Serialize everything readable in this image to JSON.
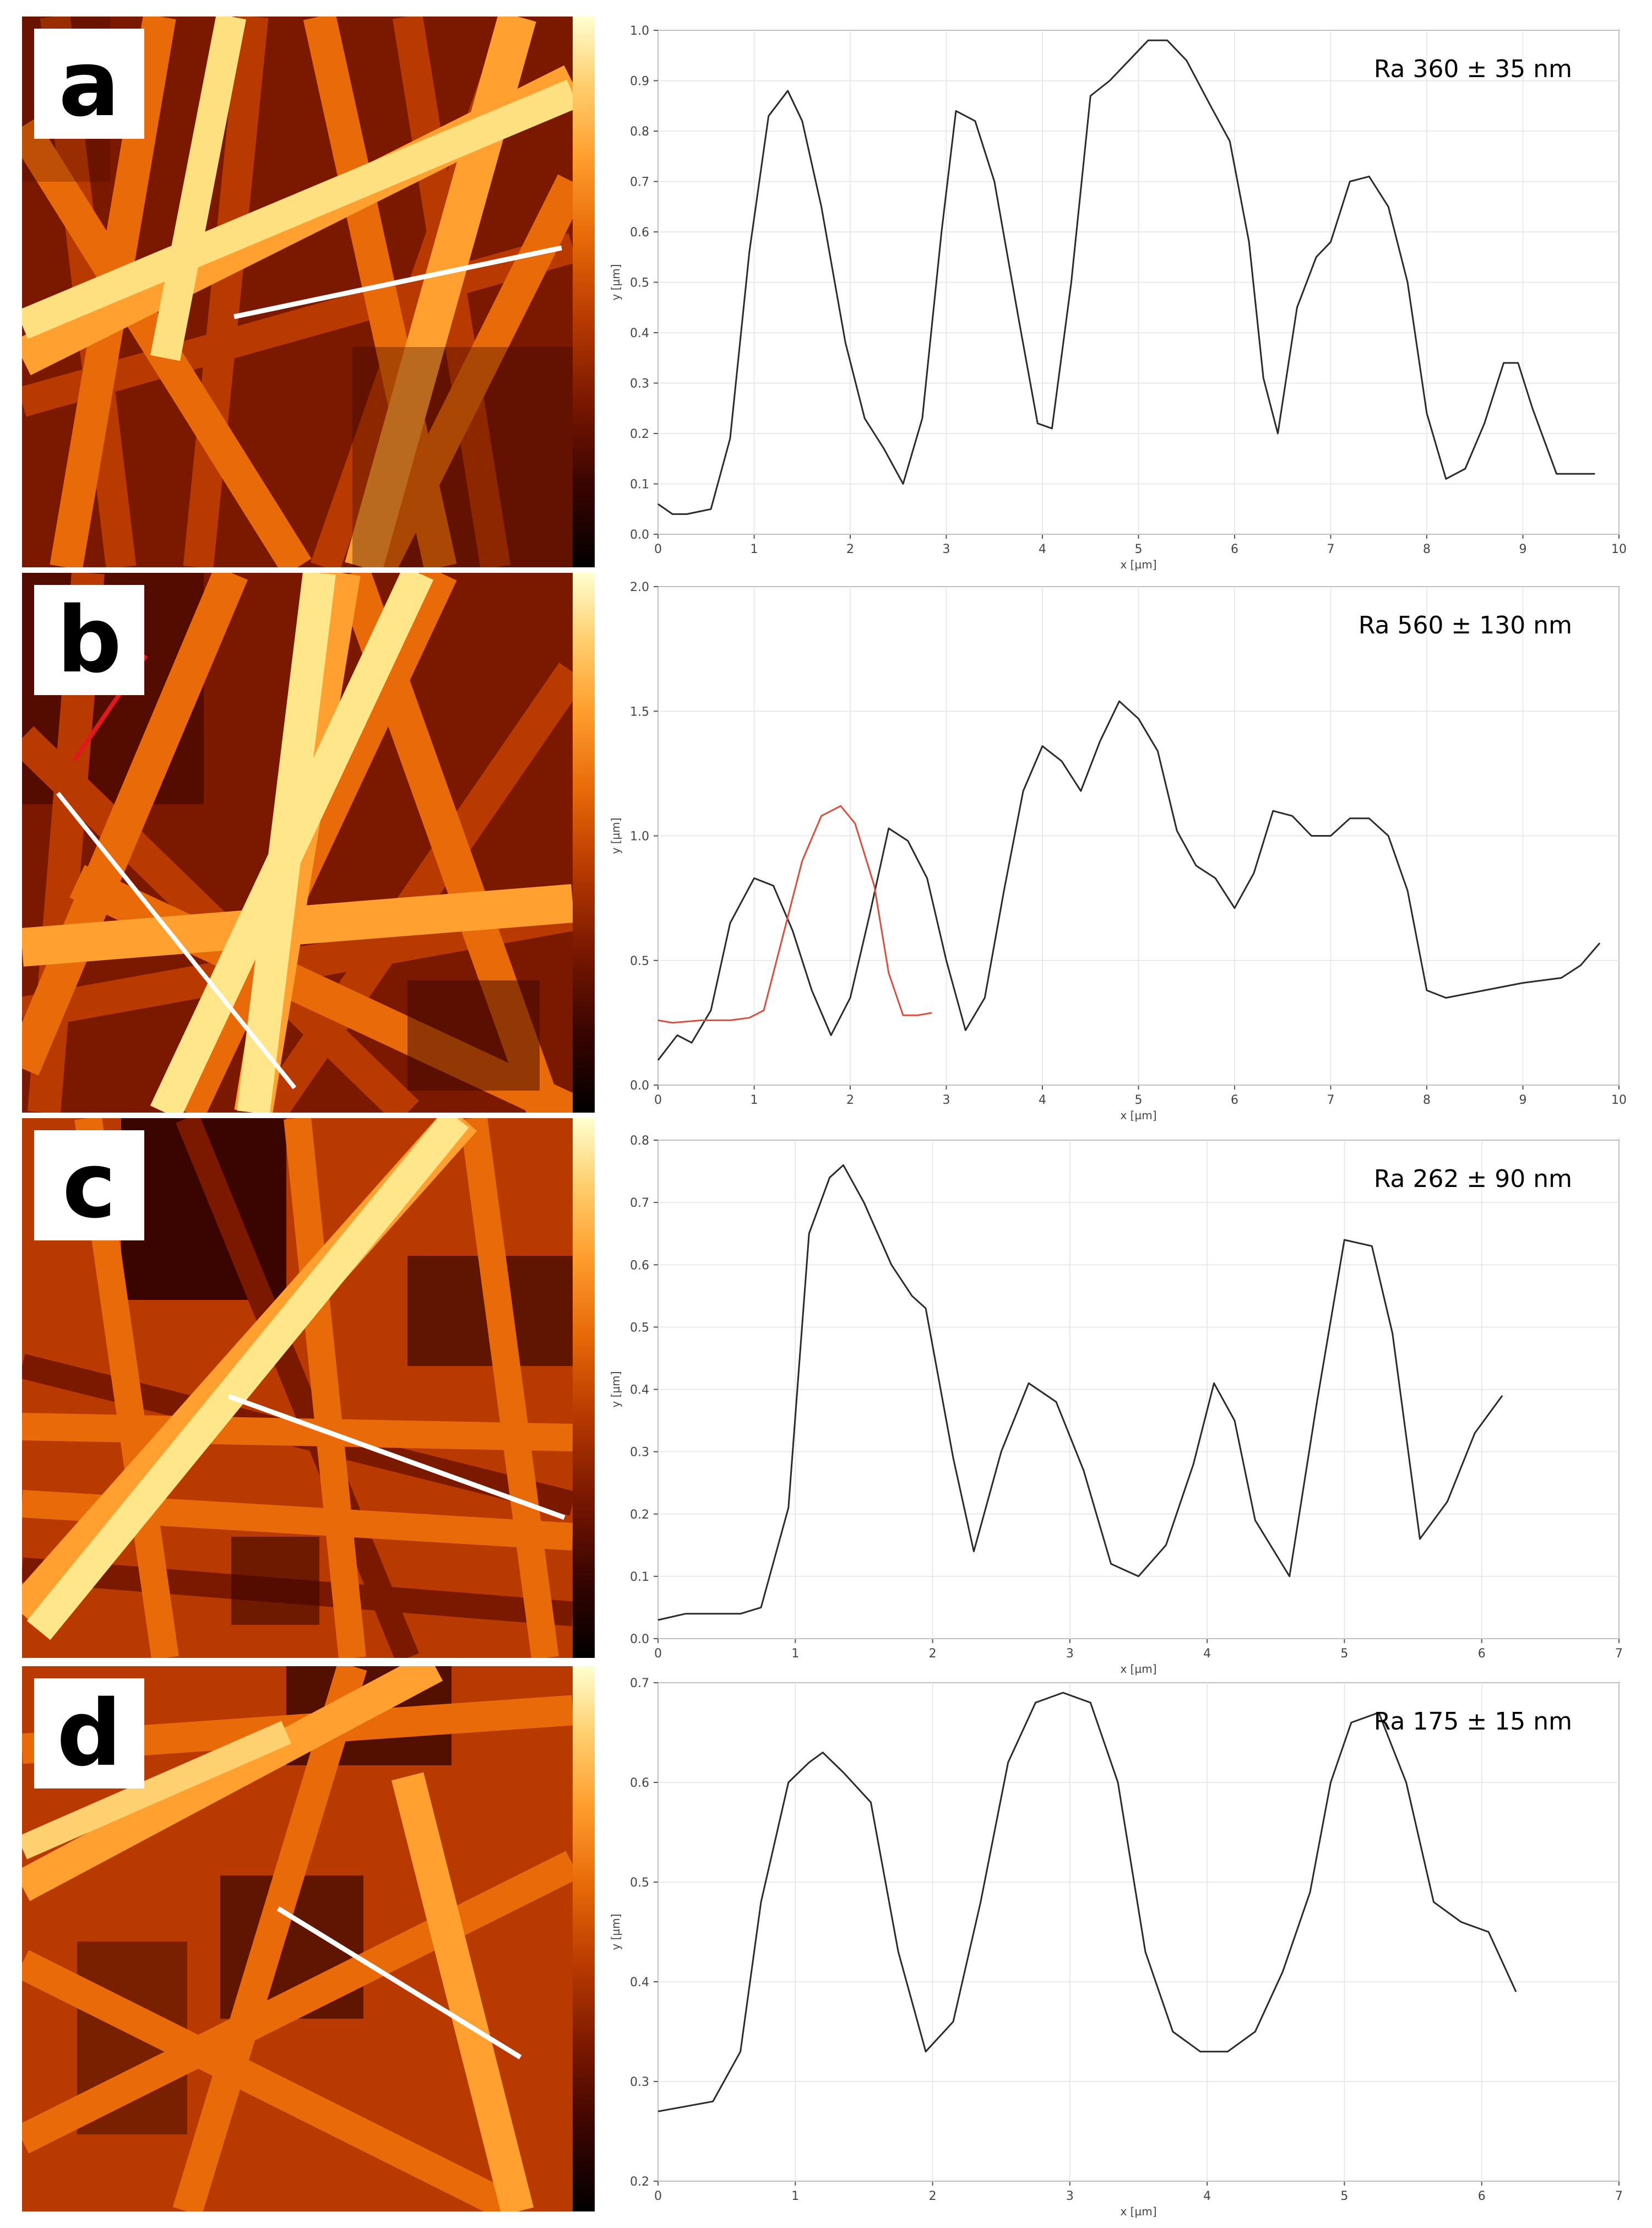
{
  "panels": [
    {
      "label": "a",
      "annotation": "Ra 360 ± 35 nm",
      "line_color": "#ffffff"
    },
    {
      "label": "b",
      "annotation": "Ra 560 ± 130 nm",
      "line_color": "#ffffff",
      "second_line_color": "#e0191b"
    },
    {
      "label": "c",
      "annotation": "Ra 262 ± 90 nm",
      "line_color": "#ffffff"
    },
    {
      "label": "d",
      "annotation": "Ra 175 ± 15 nm",
      "line_color": "#ffffff"
    }
  ],
  "colormap": [
    "#000000",
    "#3a0500",
    "#7a1800",
    "#b83a00",
    "#e86a08",
    "#ffa030",
    "#ffd070",
    "#ffffd0"
  ],
  "chart_data": [
    {
      "type": "line",
      "xlabel": "x [µm]",
      "ylabel": "y [µm]",
      "xlim": [
        0,
        10
      ],
      "ylim": [
        0,
        1.0
      ],
      "xticks": [
        0,
        1,
        2,
        3,
        4,
        5,
        6,
        7,
        8,
        9,
        10
      ],
      "yticks": [
        0,
        0.1,
        0.2,
        0.3,
        0.4,
        0.5,
        0.6,
        0.7,
        0.8,
        0.9,
        1.0
      ],
      "ytick_decimals": 1,
      "grid": true,
      "series": [
        {
          "color": "#2b2b2b",
          "x": [
            0,
            0.15,
            0.3,
            0.55,
            0.75,
            0.95,
            1.15,
            1.35,
            1.5,
            1.7,
            1.95,
            2.15,
            2.35,
            2.55,
            2.75,
            2.95,
            3.1,
            3.3,
            3.5,
            3.75,
            3.95,
            4.1,
            4.3,
            4.5,
            4.7,
            4.95,
            5.1,
            5.3,
            5.5,
            5.75,
            5.95,
            6.15,
            6.3,
            6.45,
            6.65,
            6.85,
            7.0,
            7.2,
            7.4,
            7.6,
            7.8,
            8.0,
            8.2,
            8.4,
            8.6,
            8.8,
            8.95,
            9.1,
            9.35,
            9.75
          ],
          "y": [
            0.06,
            0.04,
            0.04,
            0.05,
            0.19,
            0.56,
            0.83,
            0.88,
            0.82,
            0.65,
            0.38,
            0.23,
            0.17,
            0.1,
            0.23,
            0.6,
            0.84,
            0.82,
            0.7,
            0.43,
            0.22,
            0.21,
            0.5,
            0.87,
            0.9,
            0.95,
            0.98,
            0.98,
            0.94,
            0.85,
            0.78,
            0.58,
            0.31,
            0.2,
            0.45,
            0.55,
            0.58,
            0.7,
            0.71,
            0.65,
            0.5,
            0.24,
            0.11,
            0.13,
            0.22,
            0.34,
            0.34,
            0.25,
            0.12,
            0.12
          ]
        }
      ]
    },
    {
      "type": "line",
      "xlabel": "x [µm]",
      "ylabel": "y [µm]",
      "xlim": [
        0,
        10
      ],
      "ylim": [
        0,
        2.0
      ],
      "xticks": [
        0,
        1,
        2,
        3,
        4,
        5,
        6,
        7,
        8,
        9,
        10
      ],
      "yticks": [
        0,
        0.5,
        1.0,
        1.5,
        2.0
      ],
      "ytick_decimals": 1,
      "grid": true,
      "series": [
        {
          "color": "#2b2b2b",
          "x": [
            0,
            0.2,
            0.35,
            0.55,
            0.75,
            1.0,
            1.2,
            1.4,
            1.6,
            1.8,
            2.0,
            2.2,
            2.4,
            2.6,
            2.8,
            3.0,
            3.2,
            3.4,
            3.6,
            3.8,
            4.0,
            4.2,
            4.4,
            4.6,
            4.8,
            5.0,
            5.2,
            5.4,
            5.6,
            5.8,
            6.0,
            6.2,
            6.4,
            6.6,
            6.8,
            7.0,
            7.2,
            7.4,
            7.6,
            7.8,
            8.0,
            8.2,
            8.6,
            9.0,
            9.4,
            9.6,
            9.8
          ],
          "y": [
            0.1,
            0.2,
            0.17,
            0.3,
            0.65,
            0.83,
            0.8,
            0.62,
            0.38,
            0.2,
            0.35,
            0.68,
            1.03,
            0.98,
            0.83,
            0.5,
            0.22,
            0.35,
            0.78,
            1.18,
            1.36,
            1.3,
            1.18,
            1.38,
            1.54,
            1.47,
            1.34,
            1.02,
            0.88,
            0.83,
            0.71,
            0.85,
            1.1,
            1.08,
            1.0,
            1.0,
            1.07,
            1.07,
            1.0,
            0.78,
            0.38,
            0.35,
            0.38,
            0.41,
            0.43,
            0.48,
            0.57
          ]
        },
        {
          "color": "#d9503f",
          "x": [
            0,
            0.15,
            0.45,
            0.75,
            0.95,
            1.1,
            1.3,
            1.5,
            1.7,
            1.9,
            2.05,
            2.25,
            2.4,
            2.55,
            2.7,
            2.85
          ],
          "y": [
            0.26,
            0.25,
            0.26,
            0.26,
            0.27,
            0.3,
            0.6,
            0.9,
            1.08,
            1.12,
            1.05,
            0.8,
            0.45,
            0.28,
            0.28,
            0.29
          ]
        }
      ]
    },
    {
      "type": "line",
      "xlabel": "x [µm]",
      "ylabel": "y [µm]",
      "xlim": [
        0,
        7
      ],
      "ylim": [
        0,
        0.8
      ],
      "xticks": [
        0,
        1,
        2,
        3,
        4,
        5,
        6,
        7
      ],
      "yticks": [
        0,
        0.1,
        0.2,
        0.3,
        0.4,
        0.5,
        0.6,
        0.7,
        0.8
      ],
      "ytick_decimals": 1,
      "grid": true,
      "series": [
        {
          "color": "#2b2b2b",
          "x": [
            0,
            0.2,
            0.4,
            0.6,
            0.75,
            0.95,
            1.1,
            1.25,
            1.35,
            1.5,
            1.7,
            1.85,
            1.95,
            2.15,
            2.3,
            2.5,
            2.7,
            2.9,
            3.1,
            3.3,
            3.5,
            3.7,
            3.9,
            4.05,
            4.2,
            4.35,
            4.6,
            4.8,
            5.0,
            5.2,
            5.35,
            5.55,
            5.75,
            5.95,
            6.15
          ],
          "y": [
            0.03,
            0.04,
            0.04,
            0.04,
            0.05,
            0.21,
            0.65,
            0.74,
            0.76,
            0.7,
            0.6,
            0.55,
            0.53,
            0.29,
            0.14,
            0.3,
            0.41,
            0.38,
            0.27,
            0.12,
            0.1,
            0.15,
            0.28,
            0.41,
            0.35,
            0.19,
            0.1,
            0.38,
            0.64,
            0.63,
            0.49,
            0.16,
            0.22,
            0.33,
            0.39
          ]
        }
      ]
    },
    {
      "type": "line",
      "xlabel": "x [µm]",
      "ylabel": "y [µm]",
      "xlim": [
        0,
        7
      ],
      "ylim": [
        0.2,
        0.7
      ],
      "xticks": [
        0,
        1,
        2,
        3,
        4,
        5,
        6,
        7
      ],
      "yticks": [
        0.2,
        0.3,
        0.4,
        0.5,
        0.6,
        0.7
      ],
      "ytick_decimals": 1,
      "grid": true,
      "series": [
        {
          "color": "#2b2b2b",
          "x": [
            0,
            0.2,
            0.4,
            0.6,
            0.75,
            0.95,
            1.1,
            1.2,
            1.35,
            1.55,
            1.75,
            1.95,
            2.15,
            2.35,
            2.55,
            2.75,
            2.95,
            3.15,
            3.35,
            3.55,
            3.75,
            3.95,
            4.15,
            4.35,
            4.55,
            4.75,
            4.9,
            5.05,
            5.25,
            5.45,
            5.65,
            5.85,
            6.05,
            6.25
          ],
          "y": [
            0.27,
            0.275,
            0.28,
            0.33,
            0.48,
            0.6,
            0.62,
            0.63,
            0.61,
            0.58,
            0.43,
            0.33,
            0.36,
            0.48,
            0.62,
            0.68,
            0.69,
            0.68,
            0.6,
            0.43,
            0.35,
            0.33,
            0.33,
            0.35,
            0.41,
            0.49,
            0.6,
            0.66,
            0.67,
            0.6,
            0.48,
            0.46,
            0.45,
            0.39
          ]
        }
      ]
    }
  ]
}
